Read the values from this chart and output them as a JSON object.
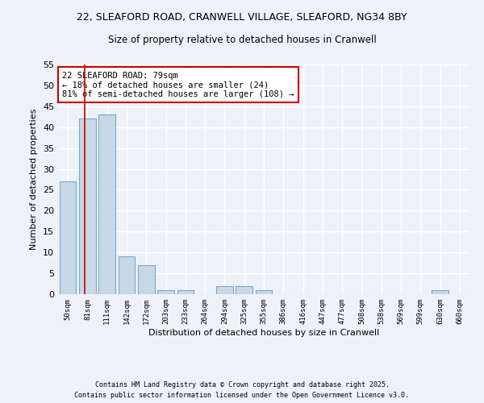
{
  "title1": "22, SLEAFORD ROAD, CRANWELL VILLAGE, SLEAFORD, NG34 8BY",
  "title2": "Size of property relative to detached houses in Cranwell",
  "xlabel": "Distribution of detached houses by size in Cranwell",
  "ylabel": "Number of detached properties",
  "bar_color": "#c8d8e8",
  "bar_edge_color": "#7aaac8",
  "bg_color": "#eef2f8",
  "grid_color": "#ffffff",
  "categories": [
    "50sqm",
    "81sqm",
    "111sqm",
    "142sqm",
    "172sqm",
    "203sqm",
    "233sqm",
    "264sqm",
    "294sqm",
    "325sqm",
    "355sqm",
    "386sqm",
    "416sqm",
    "447sqm",
    "477sqm",
    "508sqm",
    "538sqm",
    "569sqm",
    "599sqm",
    "630sqm",
    "660sqm"
  ],
  "values": [
    27,
    42,
    43,
    9,
    7,
    1,
    1,
    0,
    2,
    2,
    1,
    0,
    0,
    0,
    0,
    0,
    0,
    0,
    0,
    1,
    0
  ],
  "ylim": [
    0,
    55
  ],
  "yticks": [
    0,
    5,
    10,
    15,
    20,
    25,
    30,
    35,
    40,
    45,
    50,
    55
  ],
  "redline_x": 0.85,
  "annotation_text": "22 SLEAFORD ROAD: 79sqm\n← 18% of detached houses are smaller (24)\n81% of semi-detached houses are larger (108) →",
  "annotation_box_color": "#ffffff",
  "annotation_border_color": "#cc0000",
  "footer1": "Contains HM Land Registry data © Crown copyright and database right 2025.",
  "footer2": "Contains public sector information licensed under the Open Government Licence v3.0."
}
